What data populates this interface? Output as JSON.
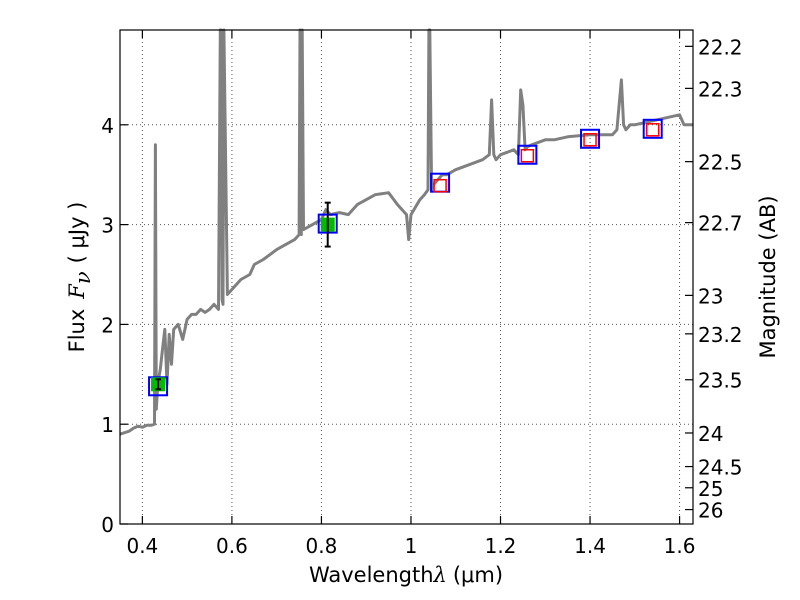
{
  "chart_data": {
    "type": "line",
    "xlabel_prefix": "Wavelength",
    "xlabel_math": "λ",
    "xlabel_unit": "(μm)",
    "ylabel_prefix": "Flux",
    "ylabel_math": "F",
    "ylabel_math_sub": "ν",
    "ylabel_unit": "( μJy )",
    "y2label": "Magnitude (AB)",
    "xlim": [
      0.35,
      1.63
    ],
    "ylim": [
      0,
      4.95
    ],
    "grid": true,
    "x_ticks": [
      "0.4",
      "0.6",
      "0.8",
      "1",
      "1.2",
      "1.4",
      "1.6"
    ],
    "y_ticks": [
      "0",
      "1",
      "2",
      "3",
      "4"
    ],
    "y2_ticks": [
      "22.2",
      "22.3",
      "22.5",
      "22.7",
      "23",
      "23.2",
      "23.5",
      "24",
      "24.5",
      "25",
      "26"
    ],
    "colors": {
      "spectrum": "#808080",
      "model_box": "#0000ff",
      "measured_fill": "#00bb00",
      "upper_limit_box": "#ff0000",
      "grid": "#555555"
    },
    "spectrum": {
      "name": "",
      "x": [
        0.35,
        0.37,
        0.38,
        0.39,
        0.4,
        0.41,
        0.42,
        0.427,
        0.429,
        0.431,
        0.433,
        0.436,
        0.44,
        0.445,
        0.45,
        0.455,
        0.46,
        0.465,
        0.47,
        0.48,
        0.49,
        0.5,
        0.51,
        0.52,
        0.53,
        0.54,
        0.55,
        0.56,
        0.57,
        0.574,
        0.576,
        0.578,
        0.58,
        0.582,
        0.59,
        0.6,
        0.62,
        0.64,
        0.65,
        0.67,
        0.7,
        0.72,
        0.74,
        0.75,
        0.752,
        0.755,
        0.757,
        0.76,
        0.78,
        0.8,
        0.81,
        0.82,
        0.84,
        0.86,
        0.88,
        0.9,
        0.92,
        0.95,
        0.97,
        0.98,
        0.99,
        0.995,
        1.0,
        1.02,
        1.03,
        1.038,
        1.04,
        1.042,
        1.046,
        1.05,
        1.06,
        1.07,
        1.08,
        1.1,
        1.13,
        1.16,
        1.175,
        1.18,
        1.185,
        1.19,
        1.2,
        1.23,
        1.24,
        1.245,
        1.25,
        1.255,
        1.26,
        1.27,
        1.3,
        1.32,
        1.35,
        1.4,
        1.42,
        1.45,
        1.46,
        1.47,
        1.475,
        1.48,
        1.49,
        1.5,
        1.52,
        1.55,
        1.58,
        1.6,
        1.61,
        1.63
      ],
      "y": [
        0.9,
        0.93,
        0.96,
        0.98,
        0.97,
        0.99,
        0.99,
        1.0,
        3.8,
        1.15,
        1.3,
        1.45,
        1.55,
        1.75,
        1.95,
        1.4,
        1.9,
        1.6,
        1.95,
        2.0,
        1.85,
        2.05,
        2.1,
        2.1,
        2.15,
        2.12,
        2.15,
        2.2,
        2.15,
        5.0,
        5.0,
        2.25,
        2.2,
        5.0,
        2.3,
        2.35,
        2.45,
        2.5,
        2.6,
        2.65,
        2.75,
        2.8,
        2.85,
        2.9,
        5.0,
        2.9,
        5.0,
        2.95,
        3.0,
        3.05,
        3.15,
        3.1,
        3.12,
        3.1,
        3.2,
        3.25,
        3.3,
        3.32,
        3.2,
        3.15,
        3.1,
        2.85,
        3.1,
        3.25,
        3.3,
        3.35,
        5.0,
        5.0,
        3.35,
        3.4,
        3.45,
        3.5,
        3.5,
        3.55,
        3.6,
        3.65,
        3.7,
        4.25,
        3.7,
        3.65,
        3.7,
        3.75,
        3.7,
        4.35,
        4.2,
        3.75,
        3.78,
        3.8,
        3.85,
        3.85,
        3.88,
        3.9,
        3.9,
        3.9,
        3.95,
        4.45,
        4.0,
        3.95,
        4.0,
        4.0,
        4.02,
        4.05,
        4.08,
        4.1,
        4.0,
        4.0
      ]
    },
    "model_photometry": [
      {
        "x": 0.435,
        "y": 1.38
      },
      {
        "x": 0.814,
        "y": 3.01
      },
      {
        "x": 1.065,
        "y": 3.42
      },
      {
        "x": 1.26,
        "y": 3.7
      },
      {
        "x": 1.4,
        "y": 3.86
      },
      {
        "x": 1.54,
        "y": 3.96
      }
    ],
    "measured_photometry": [
      {
        "x": 0.435,
        "y": 1.4,
        "yerr": 0.05
      },
      {
        "x": 0.814,
        "y": 3.0,
        "yerr": 0.22
      }
    ],
    "upper_limits": [
      {
        "x": 1.065,
        "y": 3.39
      },
      {
        "x": 1.26,
        "y": 3.69
      },
      {
        "x": 1.4,
        "y": 3.85
      },
      {
        "x": 1.54,
        "y": 3.95
      }
    ]
  }
}
